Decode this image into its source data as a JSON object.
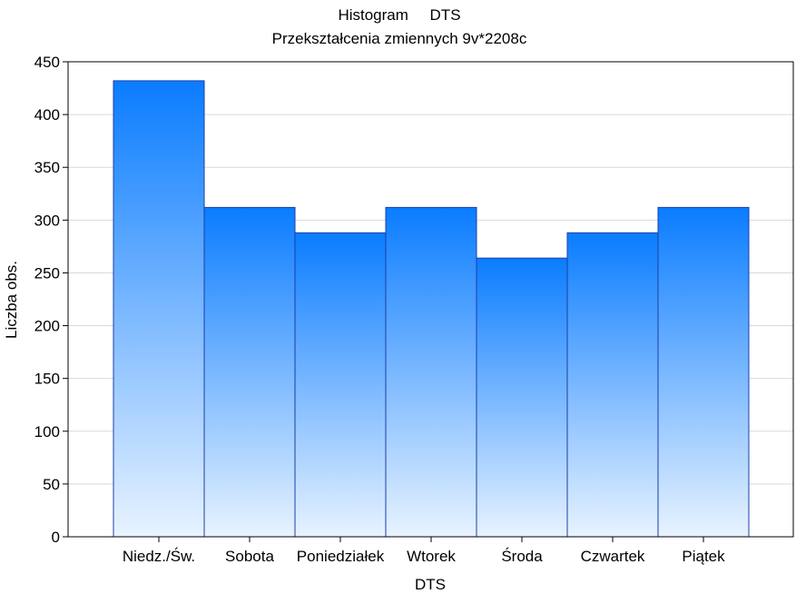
{
  "chart_data": {
    "type": "bar",
    "title": "Histogram     DTS",
    "subtitle": "Przekształcenia zmiennych 9v*2208c",
    "xlabel": "DTS",
    "ylabel": "Liczba obs.",
    "categories": [
      "Niedz./Św.",
      "Sobota",
      "Poniedziałek",
      "Wtorek",
      "Środa",
      "Czwartek",
      "Piątek"
    ],
    "values": [
      432,
      312,
      288,
      312,
      264,
      288,
      312
    ],
    "ylim": [
      0,
      450
    ],
    "yticks": [
      0,
      50,
      100,
      150,
      200,
      250,
      300,
      350,
      400,
      450
    ],
    "grid": true,
    "legend": "none",
    "colors": {
      "bar_top": "#0a7cff",
      "bar_bottom": "#e8f3ff",
      "bar_stroke": "#1a3fa8",
      "grid": "#d9d9d9",
      "axis": "#000000"
    }
  }
}
